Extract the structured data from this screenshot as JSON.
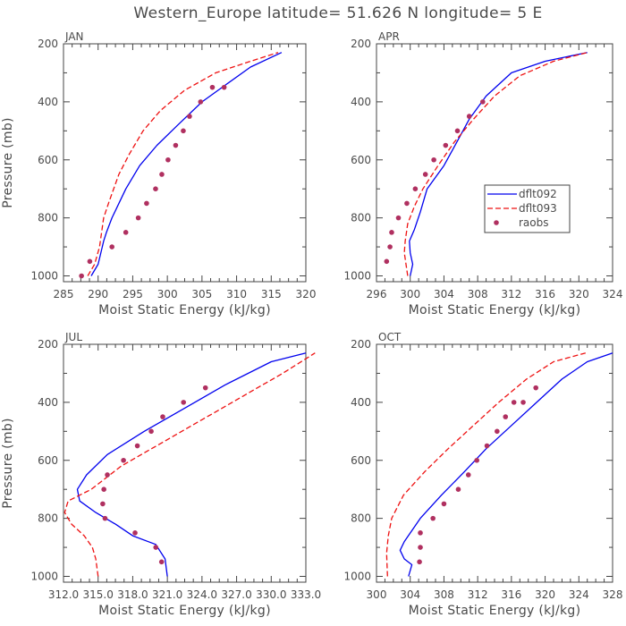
{
  "figure": {
    "title": "Western_Europe  latitude= 51.626 N longitude= 5 E"
  },
  "legend": {
    "entries": [
      "dflt092",
      "dflt093",
      "raobs"
    ]
  },
  "colors": {
    "dflt092": "#0000ee",
    "dflt093": "#ee1111",
    "raobs": "#b03060",
    "axes": "#444444"
  },
  "chart_data": [
    {
      "type": "line",
      "panel": "JAN",
      "xlabel": "Moist Static Energy (kJ/kg)",
      "ylabel": "Pressure (mb)",
      "xlim": [
        285,
        320
      ],
      "ylim": [
        1020,
        200
      ],
      "xticks": [
        285,
        290,
        295,
        300,
        305,
        310,
        315,
        320
      ],
      "xtick_labels": [
        "285",
        "290",
        "295",
        "300",
        "305",
        "310",
        "315",
        "320"
      ],
      "yticks": [
        200,
        400,
        600,
        800,
        1000
      ],
      "series": [
        {
          "name": "dflt092",
          "style": "solid",
          "x": [
            289,
            290,
            290.4,
            290.8,
            291.2,
            292,
            294,
            296,
            298.5,
            301.5,
            305,
            308.5,
            312,
            316.5
          ],
          "y": [
            1000,
            960,
            920,
            880,
            850,
            800,
            700,
            620,
            550,
            480,
            400,
            340,
            280,
            230
          ]
        },
        {
          "name": "dflt093",
          "style": "dashed",
          "x": [
            288.5,
            289.5,
            290.2,
            290.5,
            290.8,
            291.5,
            293,
            294.5,
            296.5,
            299,
            302.5,
            307,
            312,
            316
          ],
          "y": [
            1000,
            960,
            900,
            850,
            800,
            750,
            650,
            580,
            500,
            430,
            360,
            300,
            260,
            230
          ]
        },
        {
          "name": "raobs",
          "style": "markers",
          "x": [
            287.6,
            288.8,
            292,
            294,
            295.8,
            297,
            298.3,
            299.2,
            300.1,
            301.2,
            302.3,
            303.2,
            304.8,
            306.5,
            308.2
          ],
          "y": [
            1000,
            950,
            900,
            850,
            800,
            750,
            700,
            650,
            600,
            550,
            500,
            450,
            400,
            350,
            350
          ]
        }
      ]
    },
    {
      "type": "line",
      "panel": "APR",
      "xlabel": "Moist Static Energy (kJ/kg)",
      "ylabel": "",
      "xlim": [
        296,
        324
      ],
      "ylim": [
        1020,
        200
      ],
      "xticks": [
        296,
        300,
        304,
        308,
        312,
        316,
        320,
        324
      ],
      "xtick_labels": [
        "296",
        "300",
        "304",
        "308",
        "312",
        "316",
        "320",
        "324"
      ],
      "yticks": [
        200,
        400,
        600,
        800,
        1000
      ],
      "series": [
        {
          "name": "dflt092",
          "style": "solid",
          "x": [
            300,
            300.3,
            300,
            299.9,
            300.5,
            301.2,
            302,
            304,
            305.5,
            307,
            309,
            312,
            316,
            321
          ],
          "y": [
            1000,
            960,
            920,
            880,
            840,
            780,
            700,
            620,
            540,
            460,
            380,
            300,
            260,
            230
          ]
        },
        {
          "name": "dflt093",
          "style": "dashed",
          "x": [
            299.7,
            299.5,
            299.3,
            299.4,
            299.7,
            300.5,
            301.5,
            303.3,
            305.2,
            307.5,
            310,
            313,
            317,
            321
          ],
          "y": [
            1000,
            960,
            920,
            880,
            820,
            760,
            700,
            620,
            540,
            460,
            380,
            310,
            260,
            230
          ]
        },
        {
          "name": "raobs",
          "style": "markers",
          "x": [
            297.2,
            297.6,
            297.8,
            298.6,
            299.6,
            300.6,
            301.8,
            302.8,
            304.2,
            305.6,
            307,
            308.6
          ],
          "y": [
            950,
            900,
            850,
            800,
            750,
            700,
            650,
            600,
            550,
            500,
            450,
            400
          ]
        }
      ]
    },
    {
      "type": "line",
      "panel": "JUL",
      "xlabel": "Moist Static Energy (kJ/kg)",
      "ylabel": "Pressure (mb)",
      "xlim": [
        312.0,
        333.0
      ],
      "ylim": [
        1020,
        200
      ],
      "xticks": [
        312.0,
        315.0,
        318.0,
        321.0,
        324.0,
        327.0,
        330.0,
        333.0
      ],
      "xtick_labels": [
        "312.0",
        "315.0",
        "318.0",
        "321.0",
        "324.0",
        "327.0",
        "330.0",
        "333.0"
      ],
      "yticks": [
        200,
        400,
        600,
        800,
        1000
      ],
      "series": [
        {
          "name": "dflt092",
          "style": "solid",
          "x": [
            321,
            320.8,
            320,
            318,
            316.5,
            314.8,
            313.4,
            313.2,
            314,
            315.8,
            319,
            322.5,
            326,
            330,
            333
          ],
          "y": [
            1000,
            940,
            890,
            860,
            820,
            780,
            740,
            700,
            650,
            580,
            500,
            420,
            340,
            260,
            230
          ]
        },
        {
          "name": "dflt093",
          "style": "dashed",
          "x": [
            315,
            314.8,
            314.5,
            313.8,
            312.7,
            312.1,
            312.4,
            314.4,
            317,
            320.5,
            324,
            327.5,
            331,
            333.8
          ],
          "y": [
            1000,
            940,
            900,
            860,
            820,
            780,
            740,
            700,
            620,
            540,
            460,
            380,
            300,
            230
          ]
        },
        {
          "name": "raobs",
          "style": "markers",
          "x": [
            320.5,
            320,
            318.2,
            315.6,
            315.4,
            315.5,
            315.8,
            317.2,
            318.4,
            319.6,
            320.6,
            322.4,
            324.3
          ],
          "y": [
            950,
            900,
            850,
            800,
            750,
            700,
            650,
            600,
            550,
            500,
            450,
            400,
            350
          ]
        }
      ]
    },
    {
      "type": "line",
      "panel": "OCT",
      "xlabel": "Moist Static Energy (kJ/kg)",
      "ylabel": "",
      "xlim": [
        300,
        328
      ],
      "ylim": [
        1020,
        200
      ],
      "xticks": [
        300,
        304,
        308,
        312,
        316,
        320,
        324,
        328
      ],
      "xtick_labels": [
        "300",
        "304",
        "308",
        "312",
        "316",
        "320",
        "324",
        "328"
      ],
      "yticks": [
        200,
        400,
        600,
        800,
        1000
      ],
      "series": [
        {
          "name": "dflt092",
          "style": "solid",
          "x": [
            303.8,
            304.2,
            303.3,
            302.8,
            303.3,
            305.2,
            307.7,
            310.4,
            313,
            316,
            319,
            322,
            325,
            328
          ],
          "y": [
            1000,
            960,
            940,
            910,
            880,
            800,
            720,
            640,
            560,
            480,
            400,
            320,
            260,
            230
          ]
        },
        {
          "name": "dflt093",
          "style": "dashed",
          "x": [
            301.3,
            301.2,
            301.4,
            301.8,
            303.2,
            305.7,
            308.5,
            311.5,
            314.5,
            317.8,
            321,
            324.8
          ],
          "y": [
            1000,
            920,
            860,
            800,
            720,
            640,
            560,
            480,
            400,
            320,
            260,
            230
          ]
        },
        {
          "name": "raobs",
          "style": "markers",
          "x": [
            305.1,
            305.2,
            305.2,
            306.7,
            308,
            309.7,
            310.9,
            311.9,
            313.1,
            314.3,
            315.3,
            316.3,
            317.4,
            318.9
          ],
          "y": [
            950,
            900,
            850,
            800,
            750,
            700,
            650,
            600,
            550,
            500,
            450,
            400,
            400,
            350
          ]
        }
      ]
    }
  ]
}
